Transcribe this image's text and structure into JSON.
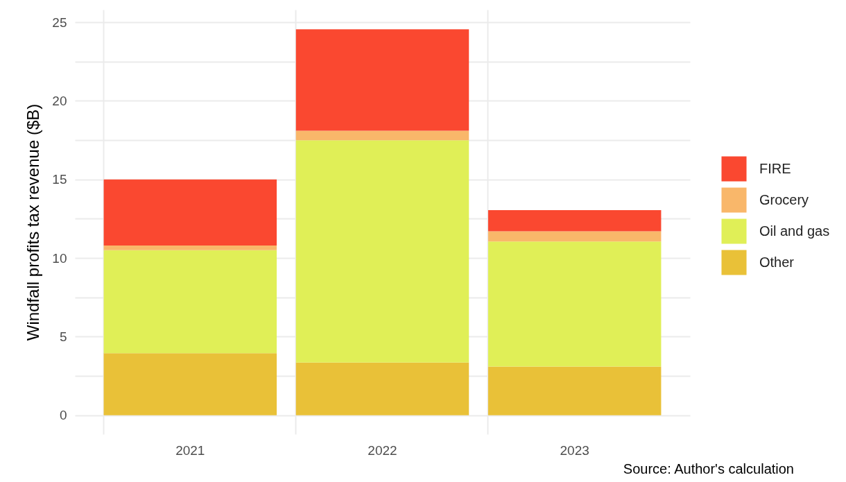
{
  "chart_data": {
    "type": "bar",
    "stacked": true,
    "ylabel": "Windfall profits tax revenue ($B)",
    "categories": [
      "2021",
      "2022",
      "2023"
    ],
    "series": [
      {
        "name": "Other",
        "color": "#e9c138",
        "values": [
          3.95,
          3.35,
          3.1
        ]
      },
      {
        "name": "Oil and gas",
        "color": "#e0ef57",
        "values": [
          6.55,
          14.15,
          7.95
        ]
      },
      {
        "name": "Grocery",
        "color": "#f9b76a",
        "values": [
          0.3,
          0.6,
          0.65
        ]
      },
      {
        "name": "FIRE",
        "color": "#fa4830",
        "values": [
          4.2,
          6.45,
          1.35
        ]
      }
    ],
    "ylim": [
      -1.2,
      25.8
    ],
    "yticks": [
      0,
      {
        "value": 2.5,
        "label": null
      },
      5,
      {
        "value": 7.5,
        "label": null
      },
      10,
      {
        "value": 12.5,
        "label": null
      },
      15,
      {
        "value": 17.5,
        "label": null
      },
      20,
      {
        "value": 22.5,
        "label": null
      },
      25
    ],
    "grid": true,
    "legend": "right",
    "annotations": [
      "Source: Author's calculation"
    ]
  }
}
